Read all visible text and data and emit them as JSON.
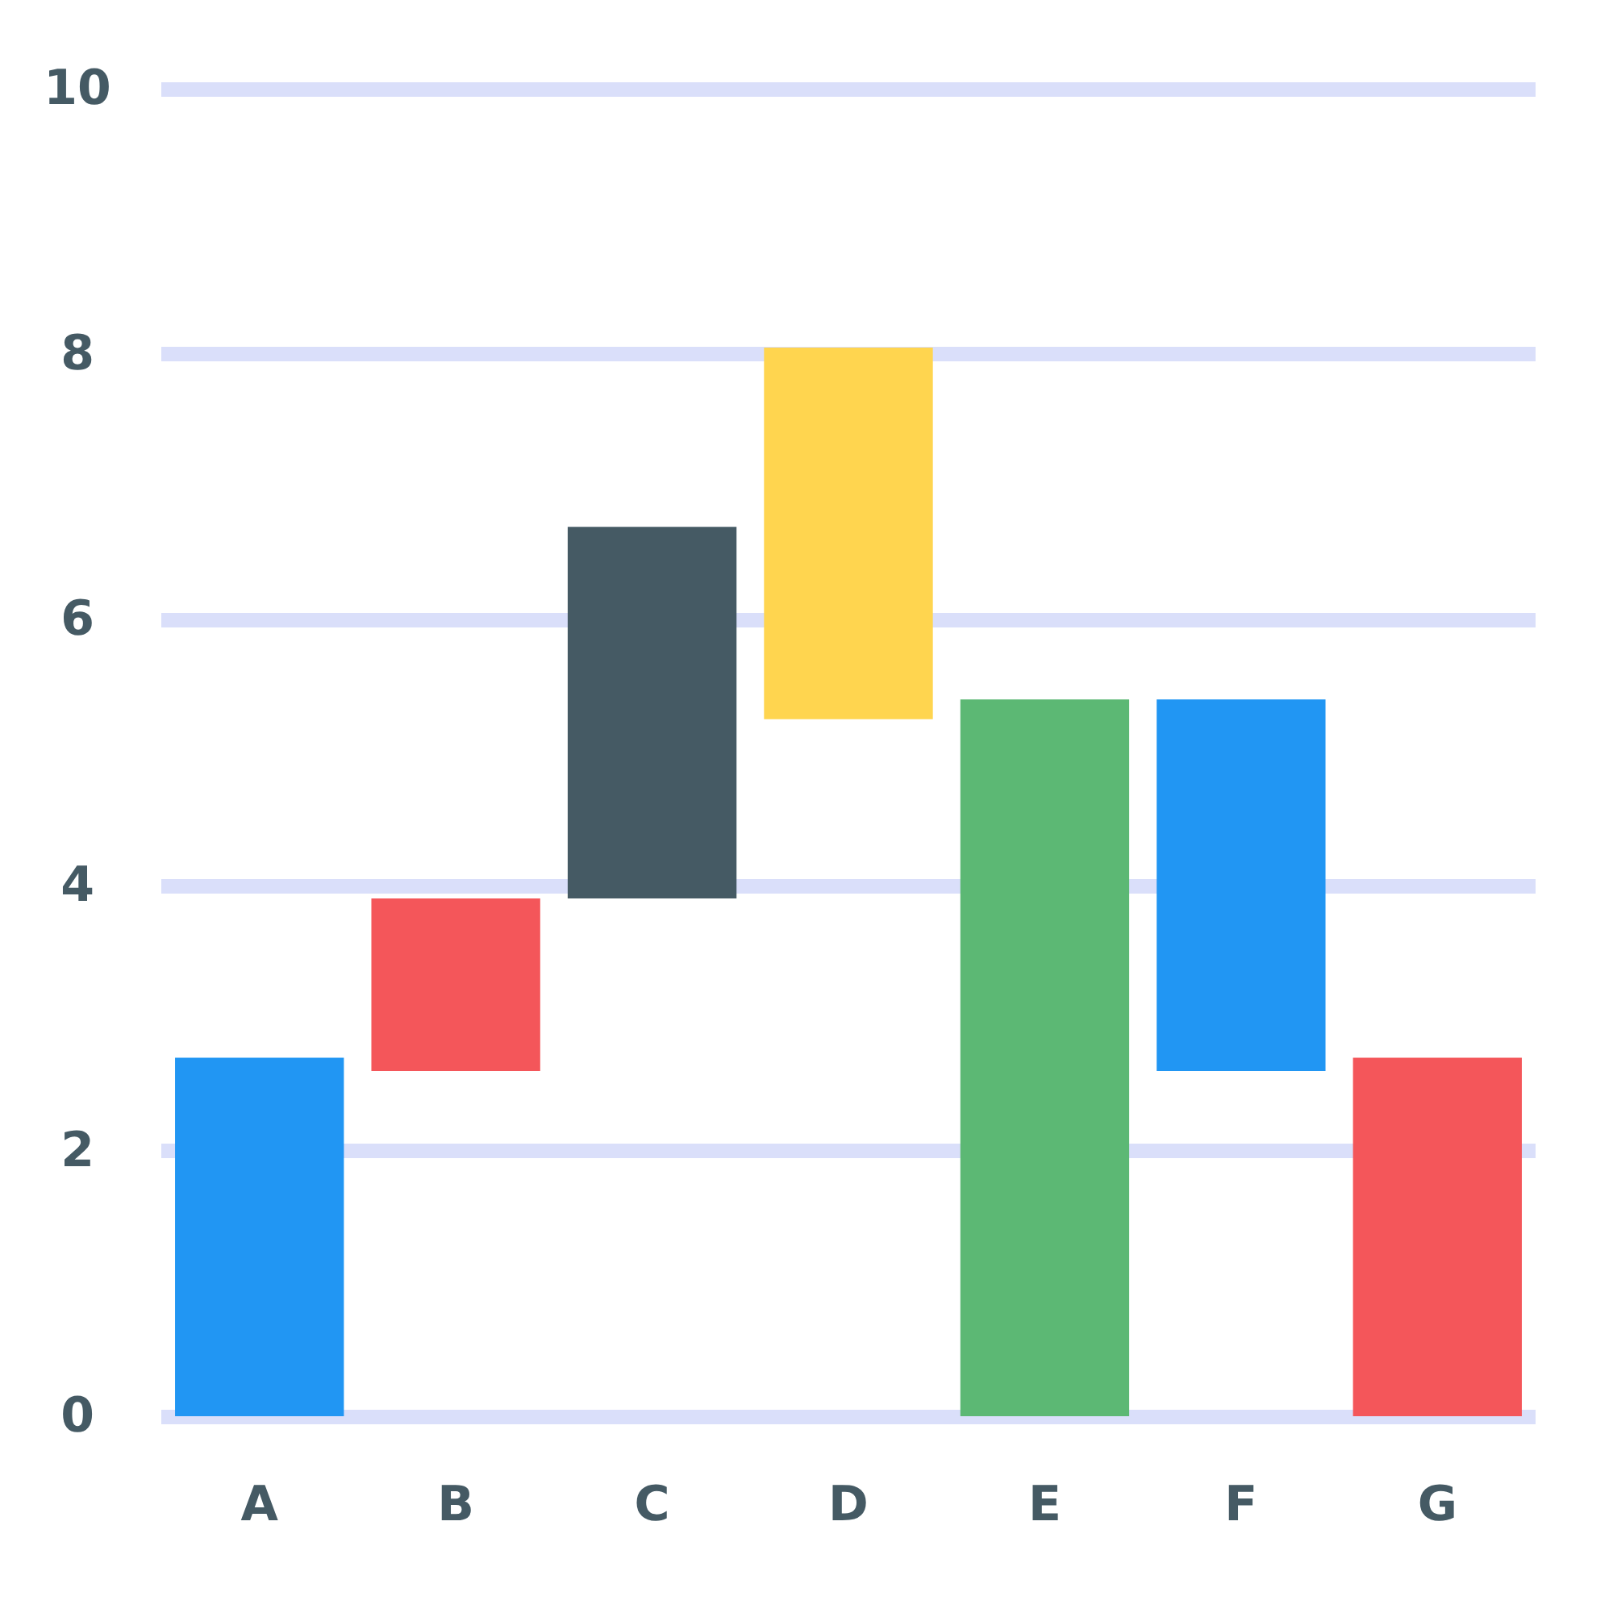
{
  "chart_data": {
    "type": "bar",
    "categories": [
      "A",
      "B",
      "C",
      "D",
      "E",
      "F",
      "G"
    ],
    "values": [
      2.7,
      1.3,
      2.8,
      2.8,
      5.4,
      2.8,
      2.7
    ],
    "base": [
      0,
      2.6,
      3.9,
      5.25,
      0,
      2.6,
      0
    ],
    "colors": [
      "#2196f3",
      "#f4565a",
      "#455a64",
      "#ffd54f",
      "#5cb874",
      "#2196f3",
      "#f4565a"
    ],
    "ylim": [
      0,
      10
    ],
    "yticks": [
      0,
      2,
      4,
      6,
      8,
      10
    ],
    "grid": "y"
  }
}
